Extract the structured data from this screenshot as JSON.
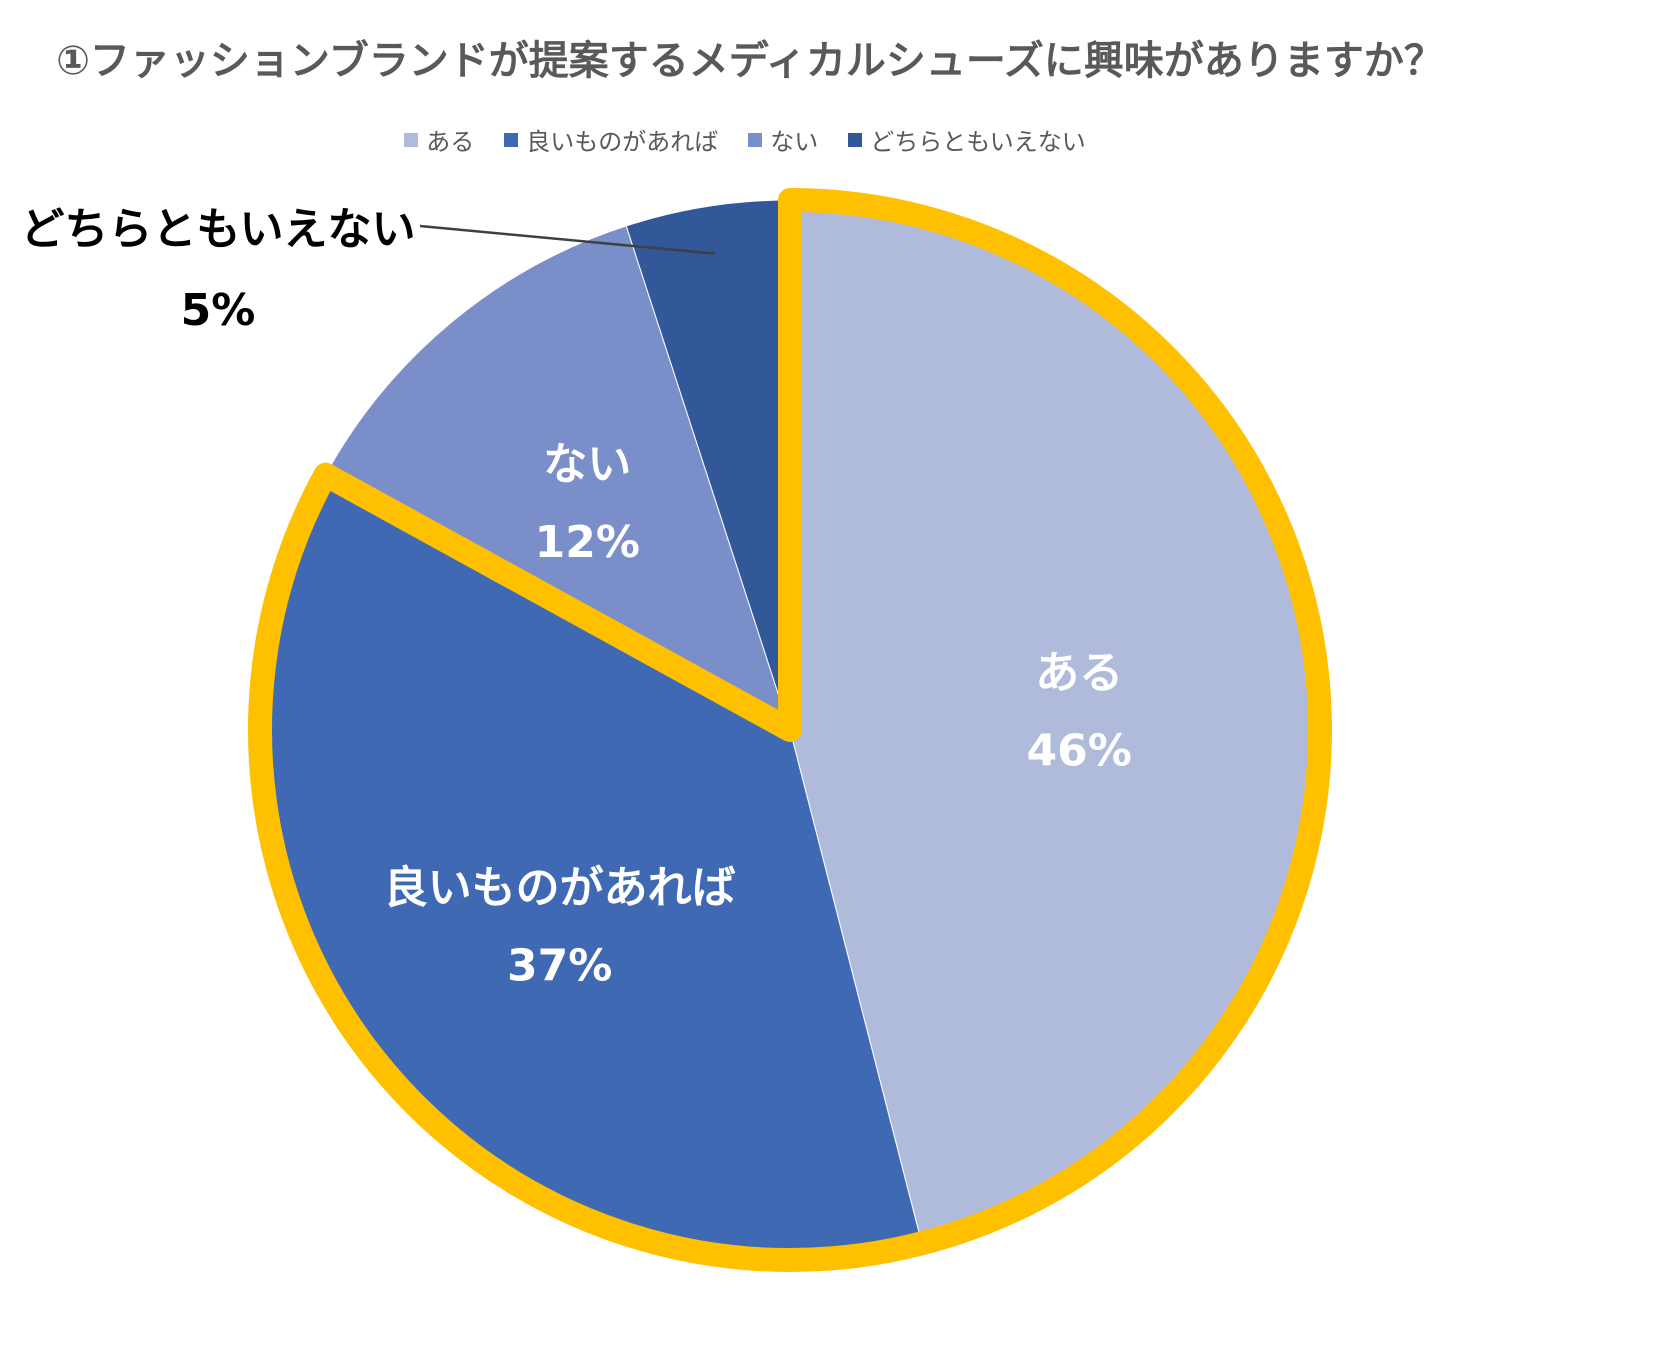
{
  "chart_data": {
    "type": "pie",
    "title": "①ファッションブランドが提案するメディカルシューズに興味がありますか？",
    "categories": [
      "ある",
      "良いものがあれば",
      "ない",
      "どちらともいえない"
    ],
    "values": [
      46,
      37,
      12,
      5
    ],
    "value_labels": [
      "46%",
      "37%",
      "12%",
      "5%"
    ],
    "colors": [
      "#b0bbdc",
      "#3f6ab3",
      "#7a8fca",
      "#32589a"
    ],
    "highlight_color": "#ffc000",
    "highlighted_slices": [
      "ある",
      "良いものがあれば"
    ],
    "legend_position": "top"
  }
}
